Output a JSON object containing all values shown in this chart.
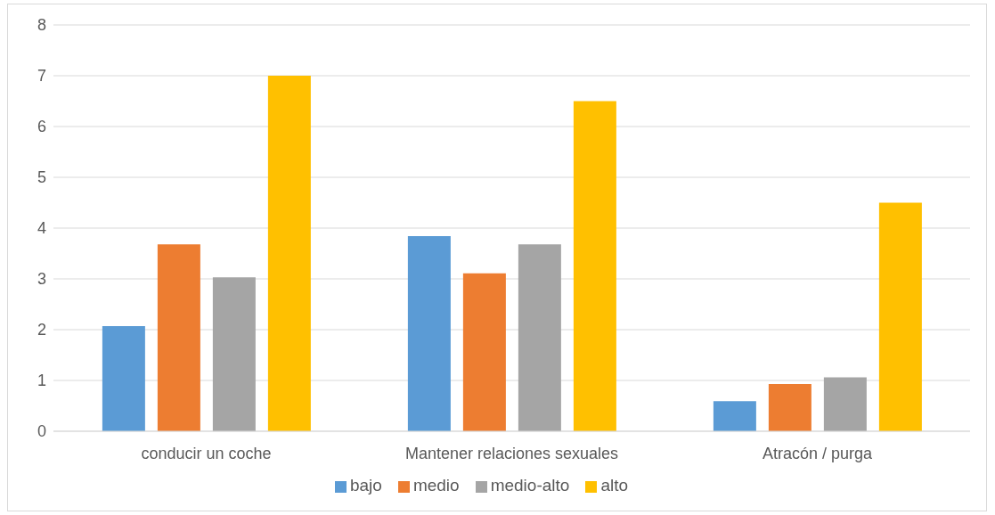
{
  "chart_data": {
    "type": "bar",
    "categories": [
      "conducir un coche",
      "Mantener relaciones sexuales",
      "Atracón / purga"
    ],
    "series": [
      {
        "name": "bajo",
        "color": "#5b9bd5",
        "values": [
          2.07,
          3.84,
          0.59
        ]
      },
      {
        "name": "medio",
        "color": "#ed7d31",
        "values": [
          3.68,
          3.11,
          0.93
        ]
      },
      {
        "name": "medio-alto",
        "color": "#a5a5a5",
        "values": [
          3.03,
          3.68,
          1.06
        ]
      },
      {
        "name": "alto",
        "color": "#ffc000",
        "values": [
          7.0,
          6.5,
          4.5
        ]
      }
    ],
    "ylim": [
      0,
      8
    ],
    "yticks": [
      0,
      1,
      2,
      3,
      4,
      5,
      6,
      7,
      8
    ],
    "grid": "y",
    "legend": "bottom"
  }
}
